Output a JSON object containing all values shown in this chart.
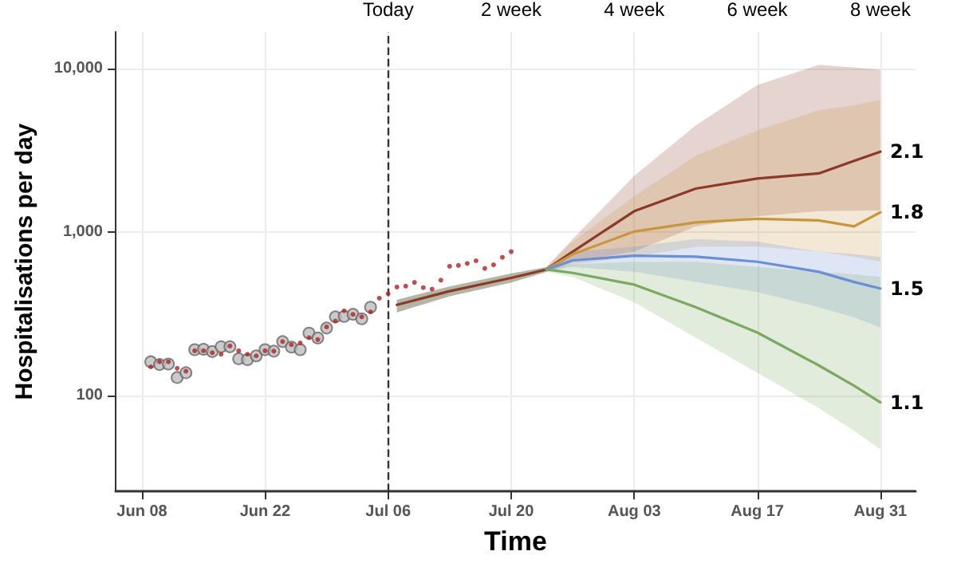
{
  "chart_data": {
    "type": "line",
    "xlabel": "Time",
    "ylabel": "Hospitalisations per day",
    "log": "y",
    "grid": true,
    "legend": false,
    "xlim": [
      "--06-05",
      "--09-04"
    ],
    "xticks": [
      {
        "value": "--06-08",
        "label": "Jun 08"
      },
      {
        "value": "--06-22",
        "label": "Jun 22"
      },
      {
        "value": "--07-06",
        "label": "Jul 06"
      },
      {
        "value": "--07-20",
        "label": "Jul 20"
      },
      {
        "value": "--08-03",
        "label": "Aug 03"
      },
      {
        "value": "--08-17",
        "label": "Aug 17"
      },
      {
        "value": "--08-31",
        "label": "Aug 31"
      }
    ],
    "x2lim": [
      "--06-05",
      "--09-04"
    ],
    "x2ticks": [
      {
        "value": "--07-06",
        "label": "Today"
      },
      {
        "value": "--07-20",
        "label": "2 week"
      },
      {
        "value": "--08-03",
        "label": "4 week"
      },
      {
        "value": "--08-17",
        "label": "6 week"
      },
      {
        "value": "--08-31",
        "label": "8 week"
      }
    ],
    "ylim": [
      26,
      16700
    ],
    "yticks": [
      100,
      {
        "value": 1000,
        "label": "1,000"
      },
      {
        "value": 10000,
        "label": "10,000"
      }
    ],
    "ref_lines": [
      {
        "axis": "x",
        "value": "--07-06",
        "line_style": "dashed",
        "color": "#333333"
      }
    ],
    "series": [
      {
        "type": "scatter",
        "marker": "circle",
        "color": "#bdbdbd",
        "x": [
          "--06-09",
          "--06-10",
          "--06-11",
          "--06-12",
          "--06-13",
          "--06-14",
          "--06-15",
          "--06-16",
          "--06-17",
          "--06-18",
          "--06-19",
          "--06-20",
          "--06-21",
          "--06-22",
          "--06-23",
          "--06-24",
          "--06-25",
          "--06-26",
          "--06-27",
          "--06-28",
          "--06-29",
          "--06-30",
          "--07-01",
          "--07-02",
          "--07-03",
          "--07-04"
        ],
        "values": [
          161,
          155,
          156,
          129,
          138,
          191,
          192,
          186,
          199,
          199,
          168,
          166,
          175,
          191,
          187,
          214,
          198,
          191,
          241,
          225,
          259,
          303,
          305,
          314,
          295,
          347
        ]
      },
      {
        "type": "scatter",
        "marker": "circle",
        "color": "#b22222",
        "x": [
          "--06-09",
          "--06-10",
          "--06-11",
          "--06-12",
          "--06-13",
          "--06-14",
          "--06-15",
          "--06-16",
          "--06-17",
          "--06-18",
          "--06-19",
          "--06-20",
          "--06-21",
          "--06-22",
          "--06-23",
          "--06-24",
          "--06-25",
          "--06-26",
          "--06-27",
          "--06-28",
          "--06-29",
          "--06-30",
          "--07-01",
          "--07-02",
          "--07-03",
          "--07-04",
          "--07-05",
          "--07-06",
          "--07-07",
          "--07-08",
          "--07-09",
          "--07-10",
          "--07-11",
          "--07-12",
          "--07-13",
          "--07-14",
          "--07-15",
          "--07-16",
          "--07-17",
          "--07-18",
          "--07-19",
          "--07-20"
        ],
        "values": [
          150,
          161,
          161,
          147,
          141,
          188,
          188,
          183,
          179,
          201,
          188,
          179,
          175,
          188,
          187,
          214,
          205,
          210,
          226,
          220,
          263,
          286,
          330,
          314,
          303,
          325,
          394,
          420,
          461,
          467,
          492,
          457,
          448,
          508,
          617,
          625,
          643,
          667,
          599,
          630,
          700,
          758
        ]
      },
      {
        "name": "2.1",
        "marker": "none",
        "color": "#8b3a2a",
        "x": [
          "--07-07",
          "--07-13",
          "--07-20",
          "--07-24",
          "--07-27",
          "--08-03",
          "--08-10",
          "--08-17",
          "--08-24",
          "--08-28",
          "--08-31"
        ],
        "values": [
          359,
          435,
          524,
          590,
          758,
          1340,
          1842,
          2123,
          2281,
          2723,
          3095
        ],
        "upper": [
          385,
          465,
          558,
          610,
          905,
          2201,
          4479,
          7907,
          10510,
          10150,
          9788
        ],
        "lower": [
          323,
          405,
          492,
          570,
          658,
          758,
          1082,
          1246,
          1340,
          1350,
          1357
        ]
      },
      {
        "name": "1.8",
        "marker": "none",
        "color": "#c8963e",
        "x": [
          "--07-07",
          "--07-13",
          "--07-20",
          "--07-24",
          "--07-27",
          "--08-03",
          "--08-10",
          "--08-17",
          "--08-24",
          "--08-28",
          "--08-31"
        ],
        "values": [
          null,
          null,
          null,
          590,
          731,
          1007,
          1145,
          1203,
          1178,
          1082,
          1319
        ],
        "upper": [
          385,
          465,
          558,
          610,
          874,
          1656,
          2924,
          4173,
          5543,
          5953,
          6391
        ],
        "lower": [
          323,
          405,
          492,
          570,
          635,
          706,
          814,
          814,
          758,
          706,
          658
        ]
      },
      {
        "name": "1.5",
        "marker": "none",
        "color": "#6b8fd6",
        "x": [
          "--07-07",
          "--07-13",
          "--07-20",
          "--07-24",
          "--07-27",
          "--08-03",
          "--08-10",
          "--08-17",
          "--08-24",
          "--08-28",
          "--08-31"
        ],
        "values": [
          null,
          null,
          null,
          590,
          671,
          716,
          706,
          658,
          571,
          495,
          452
        ],
        "upper": [
          385,
          465,
          558,
          610,
          758,
          814,
          905,
          874,
          758,
          732,
          706
        ],
        "lower": [
          323,
          405,
          492,
          570,
          612,
          571,
          495,
          429,
          347,
          301,
          261
        ]
      },
      {
        "name": "1.1",
        "marker": "none",
        "color": "#7aaa60",
        "x": [
          "--07-07",
          "--07-13",
          "--07-20",
          "--07-24",
          "--07-27",
          "--08-03",
          "--08-10",
          "--08-17",
          "--08-24",
          "--08-28",
          "--08-31"
        ],
        "values": [
          null,
          null,
          null,
          590,
          562,
          477,
          347,
          243,
          153,
          115,
          91
        ],
        "upper": [
          385,
          465,
          558,
          610,
          635,
          658,
          658,
          612,
          571,
          551,
          531
        ],
        "lower": [
          323,
          405,
          492,
          570,
          531,
          372,
          226,
          138,
          84,
          61,
          47
        ]
      }
    ]
  }
}
